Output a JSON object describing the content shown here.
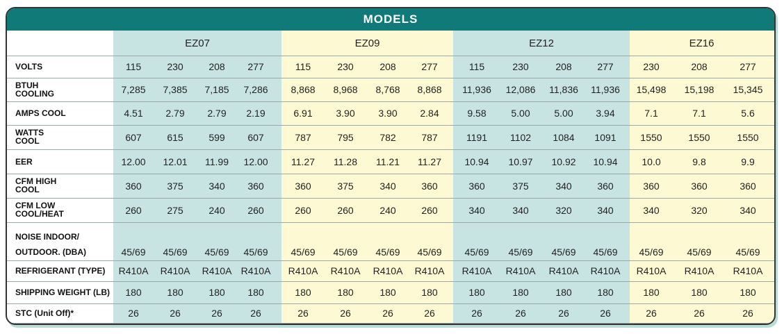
{
  "title": "MODELS",
  "models": [
    "EZ07",
    "EZ09",
    "EZ12",
    "EZ16"
  ],
  "table": {
    "rows": [
      {
        "label": [
          "VOLTS"
        ],
        "cells": [
          "115",
          "230",
          "208",
          "277",
          "115",
          "230",
          "208",
          "277",
          "115",
          "230",
          "208",
          "277",
          "230",
          "208",
          "277"
        ]
      },
      {
        "label": [
          "BTUH",
          "COOLING"
        ],
        "cells": [
          "7,285",
          "7,385",
          "7,185",
          "7,286",
          "8,868",
          "8,968",
          "8,768",
          "8,868",
          "11,936",
          "12,086",
          "11,836",
          "11,936",
          "15,498",
          "15,198",
          "15,345"
        ]
      },
      {
        "label": [
          "AMPS COOL"
        ],
        "cells": [
          "4.51",
          "2.79",
          "2.79",
          "2.19",
          "6.91",
          "3.90",
          "3.90",
          "2.84",
          "9.58",
          "5.00",
          "5.00",
          "3.94",
          "7.1",
          "7.1",
          "5.6"
        ]
      },
      {
        "label": [
          "WATTS",
          "COOL"
        ],
        "cells": [
          "607",
          "615",
          "599",
          "607",
          "787",
          "795",
          "782",
          "787",
          "1191",
          "1102",
          "1084",
          "1091",
          "1550",
          "1550",
          "1550"
        ]
      },
      {
        "label": [
          "EER"
        ],
        "cells": [
          "12.00",
          "12.01",
          "11.99",
          "12.00",
          "11.27",
          "11.28",
          "11.21",
          "11.27",
          "10.94",
          "10.97",
          "10.92",
          "10.94",
          "10.0",
          "9.8",
          "9.9"
        ]
      },
      {
        "label": [
          "CFM HIGH",
          "COOL"
        ],
        "cells": [
          "360",
          "375",
          "340",
          "360",
          "360",
          "375",
          "340",
          "360",
          "360",
          "375",
          "340",
          "360",
          "360",
          "360",
          "360"
        ]
      },
      {
        "label": [
          "CFM LOW",
          "COOL/HEAT"
        ],
        "cells": [
          "260",
          "275",
          "240",
          "260",
          "260",
          "260",
          "240",
          "260",
          "340",
          "340",
          "320",
          "340",
          "340",
          "320",
          "340"
        ]
      },
      {
        "label": [
          "NOISE INDOOR/",
          "OUTDOOR. (DBA)"
        ],
        "cells": [
          "45/69",
          "45/69",
          "45/69",
          "45/69",
          "45/69",
          "45/69",
          "45/69",
          "45/69",
          "45/69",
          "45/69",
          "45/69",
          "45/69",
          "45/69",
          "45/69",
          "45/69"
        ]
      },
      {
        "label": [
          "REFRIGERANT (TYPE)"
        ],
        "cells": [
          "R410A",
          "R410A",
          "R410A",
          "R410A",
          "R410A",
          "R410A",
          "R410A",
          "R410A",
          "R410A",
          "R410A",
          "R410A",
          "R410A",
          "R410A",
          "R410A",
          "R410A"
        ]
      },
      {
        "label": [
          "SHIPPING WEIGHT (LB)"
        ],
        "cells": [
          "180",
          "180",
          "180",
          "180",
          "180",
          "180",
          "180",
          "180",
          "180",
          "180",
          "180",
          "180",
          "180",
          "180",
          "180"
        ]
      },
      {
        "label": [
          "STC (Unit Off)*"
        ],
        "cells": [
          "26",
          "26",
          "26",
          "26",
          "26",
          "26",
          "26",
          "26",
          "26",
          "26",
          "26",
          "26",
          "26",
          "26",
          "26"
        ]
      }
    ]
  }
}
